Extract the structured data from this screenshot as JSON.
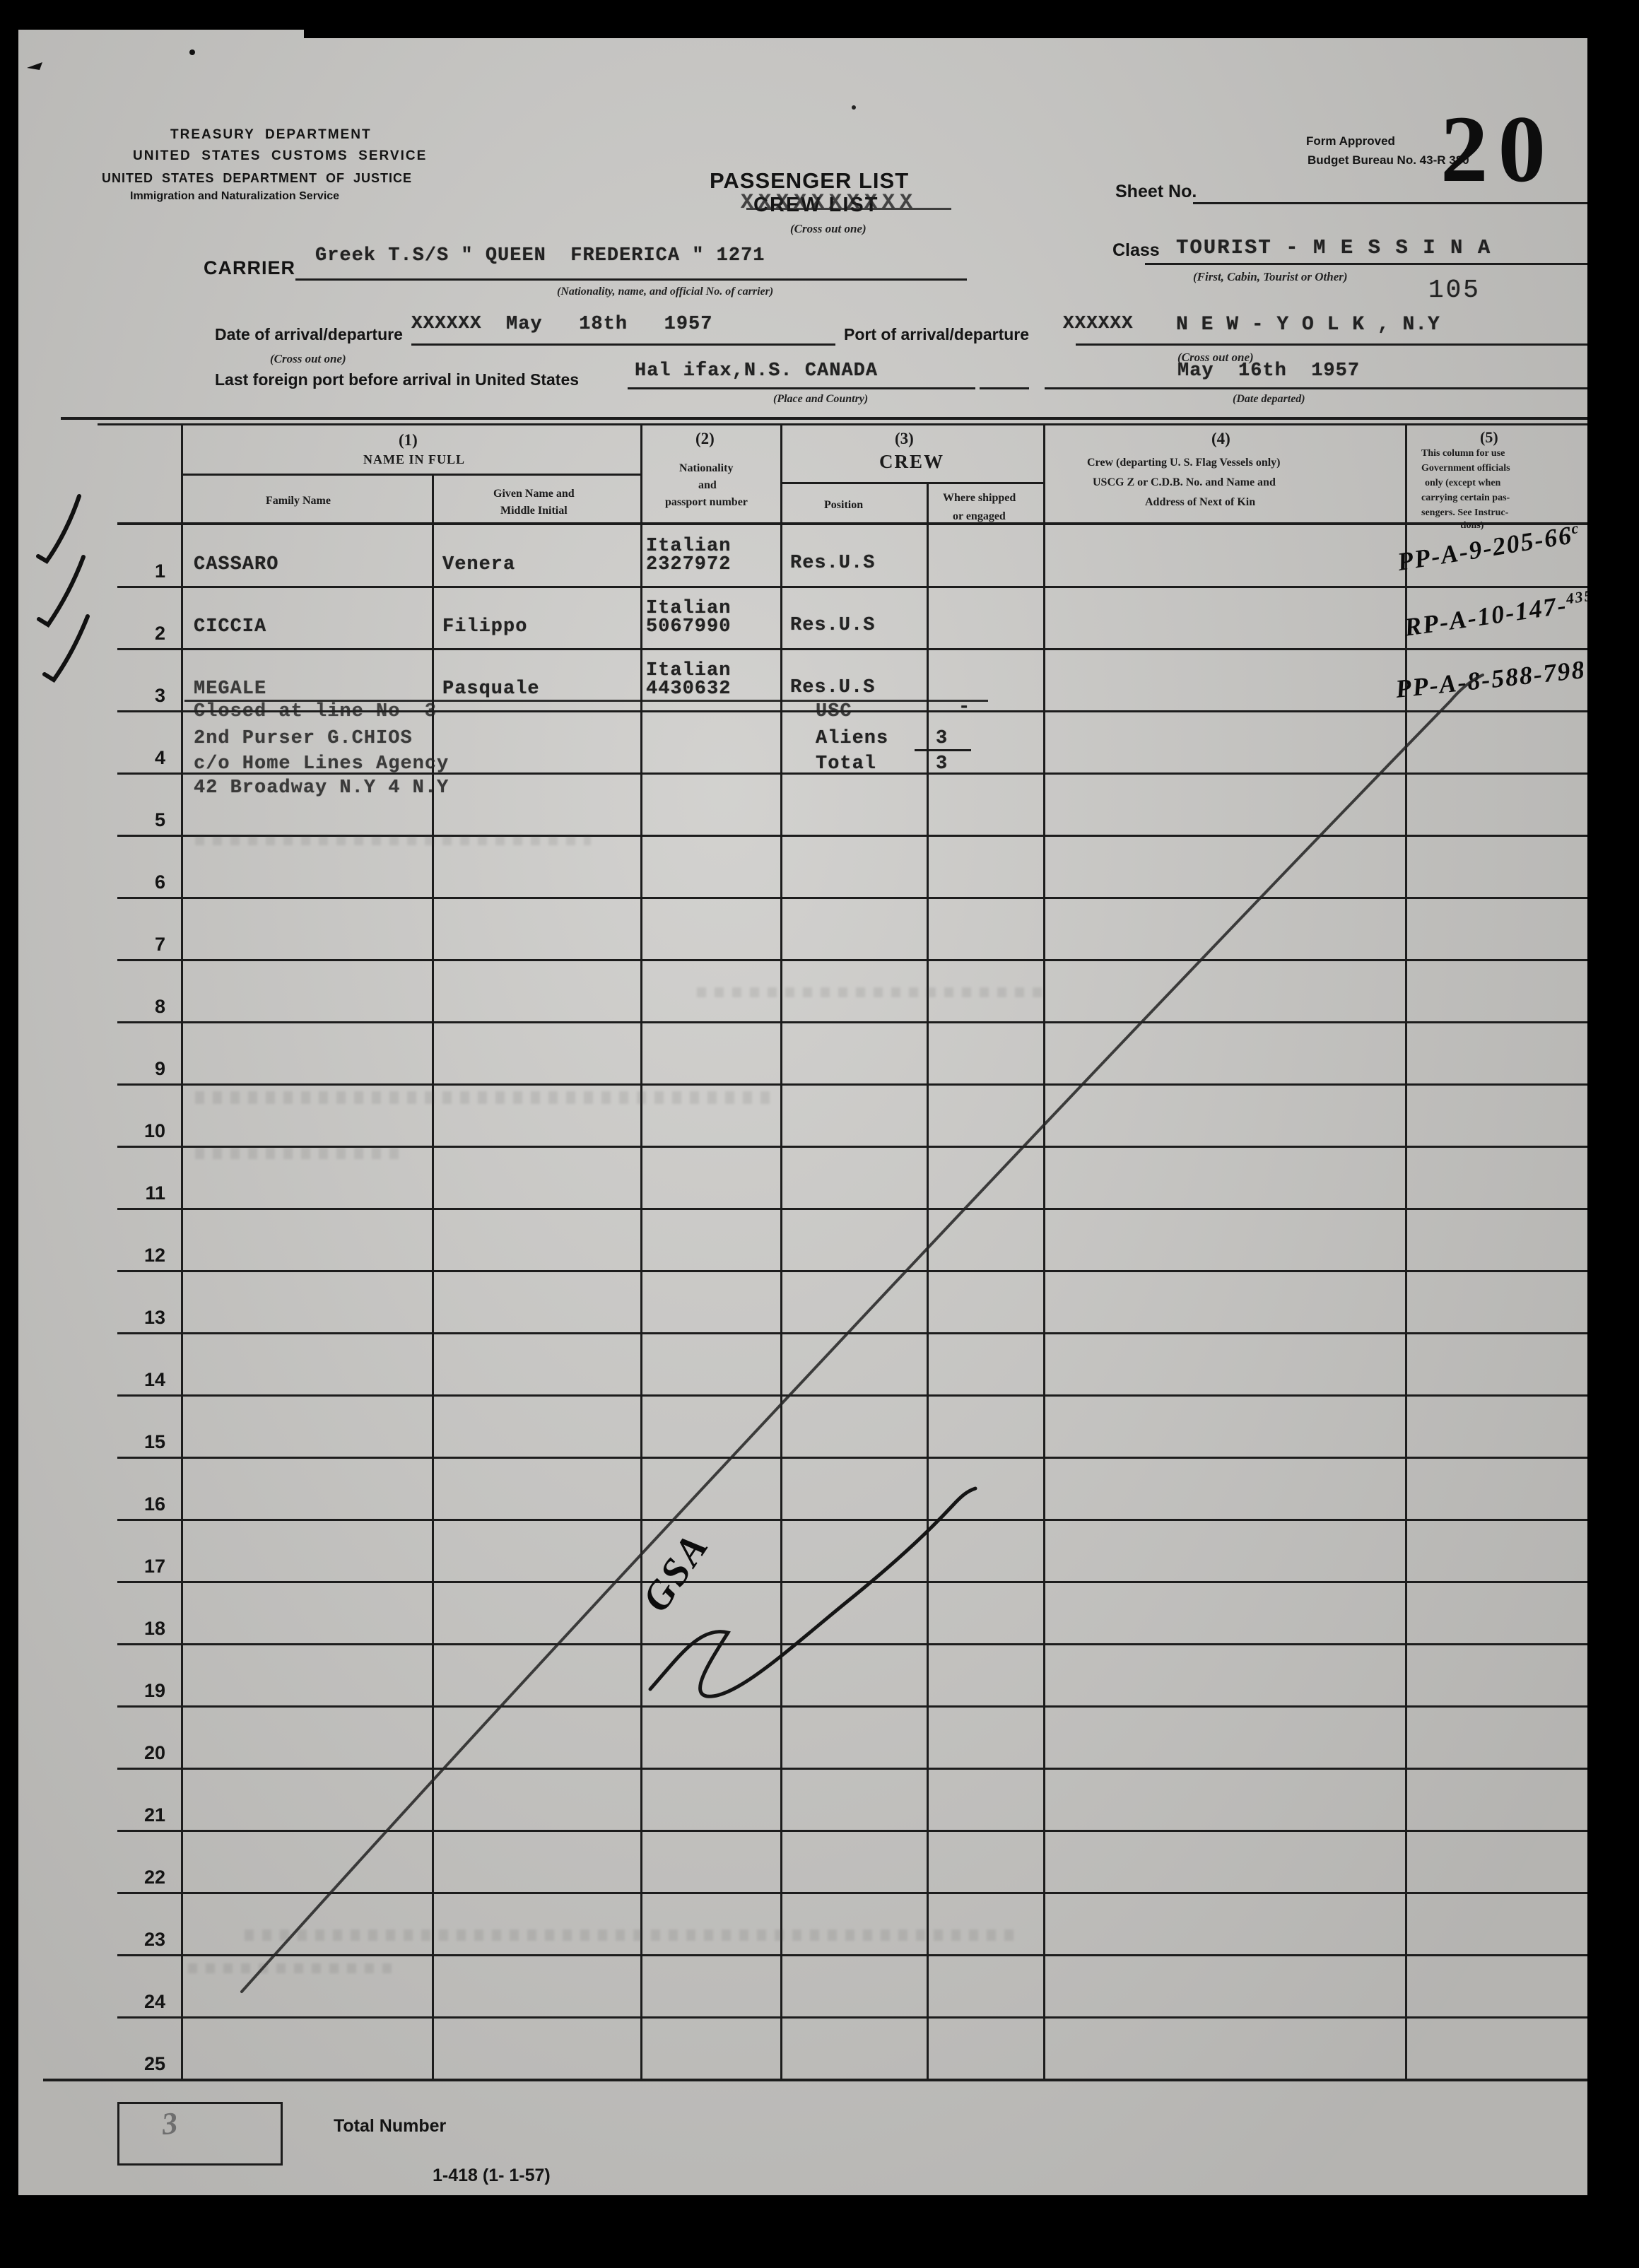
{
  "header": {
    "agency_line1": "TREASURY  DEPARTMENT",
    "agency_line2": "UNITED  STATES  CUSTOMS  SERVICE",
    "agency_line3": "UNITED  STATES  DEPARTMENT  OF  JUSTICE",
    "agency_line4": "Immigration and Naturalization Service",
    "title": "PASSENGER LIST",
    "title_struck": "CREW LIST",
    "strike_overlay": "XXXXXXXXXX",
    "cross_out_hint": "(Cross out one)",
    "form_approved_line1": "Form Approved",
    "form_approved_line2": "Budget Bureau No. 43-R 380",
    "sheet_no_label": "Sheet No.",
    "sheet_stamp": "20",
    "page_stamp": "105"
  },
  "carrier": {
    "label": "CARRIER",
    "value": "Greek T.S/S \" QUEEN  FREDERICA \" 1271",
    "hint": "(Nationality, name, and official No. of carrier)"
  },
  "voyage_class": {
    "label": "Class",
    "value": "TOURIST - M E S S I N A",
    "hint": "(First, Cabin, Tourist or Other)"
  },
  "arrival": {
    "date_label": "Date of arrival/departure",
    "date_xxx": "XXXXXX",
    "date_value": "May   18th   1957",
    "date_cross_out": "(Cross out one)",
    "port_label": "Port of arrival/departure",
    "port_xxx": "XXXXXX",
    "port_value": "N E W - Y O L K , N.Y",
    "port_cross_out": "(Cross out one)",
    "last_port_label": "Last foreign port before arrival in United States",
    "last_port_value": "Hal ifax,N.S. CANADA",
    "place_hint": "(Place and Country)",
    "depart_date_value": "May  16th  1957",
    "depart_hint": "(Date departed)"
  },
  "table": {
    "col1": {
      "num": "(1)",
      "title": "NAME IN FULL",
      "sub1": "Family Name",
      "sub2a": "Given Name and",
      "sub2b": "Middle Initial"
    },
    "col2": {
      "num": "(2)",
      "line1": "Nationality",
      "line2": "and",
      "line3": "passport number"
    },
    "col3": {
      "num": "(3)",
      "title": "CREW",
      "sub1": "Position",
      "sub2a": "Where shipped",
      "sub2b": "or engaged"
    },
    "col4": {
      "num": "(4)",
      "line1": "Crew (departing U. S. Flag Vessels only)",
      "line2": "USCG Z or C.D.B. No. and Name and",
      "line3": "Address of Next of Kin"
    },
    "col5": {
      "num": "(5)",
      "line1": "This column for use",
      "line2": "Government officials",
      "line3": "only (except when",
      "line4": "carrying certain pas-",
      "line5": "sengers. See Instruc-",
      "line6": "tions)"
    },
    "crew": [
      {
        "no": "1",
        "family": "CASSARO",
        "given": "Venera",
        "nationality": "Italian",
        "passport": "2327972",
        "position": "Res.U.S",
        "stamp_main": "PP-A-9-205-66",
        "stamp_sup": "c"
      },
      {
        "no": "2",
        "family": "CICCIA",
        "given": "Filippo",
        "nationality": "Italian",
        "passport": "5067990",
        "position": "Res.U.S",
        "stamp_main": "RP-A-10-147-",
        "stamp_sup": "435"
      },
      {
        "no": "3",
        "family": "MEGALE",
        "given": "Pasquale",
        "nationality": "Italian",
        "passport": "4430632",
        "position": "Res.U.S",
        "stamp_main": "PP-A-8-588-798",
        "stamp_sup": ""
      }
    ],
    "closure": {
      "line1": "Closed at line No  3",
      "line2": "2nd Purser G.CHIOS",
      "line3": "c/o Home Lines Agency",
      "line4": "42 Broadway N.Y 4 N.Y",
      "usc": "USC",
      "usc_dash": "-",
      "aliens_label": "Aliens",
      "aliens_value": "3",
      "total_label": "Total",
      "total_value": "3"
    },
    "row_numbers": [
      "1",
      "2",
      "3",
      "4",
      "5",
      "6",
      "7",
      "8",
      "9",
      "10",
      "11",
      "12",
      "13",
      "14",
      "15",
      "16",
      "17",
      "18",
      "19",
      "20",
      "21",
      "22",
      "23",
      "24",
      "25"
    ]
  },
  "annotations": {
    "signature_letters": "GSA"
  },
  "footer": {
    "total_label": "Total Number",
    "total_value": "3",
    "form_number": "1-418 (1- 1-57)"
  }
}
